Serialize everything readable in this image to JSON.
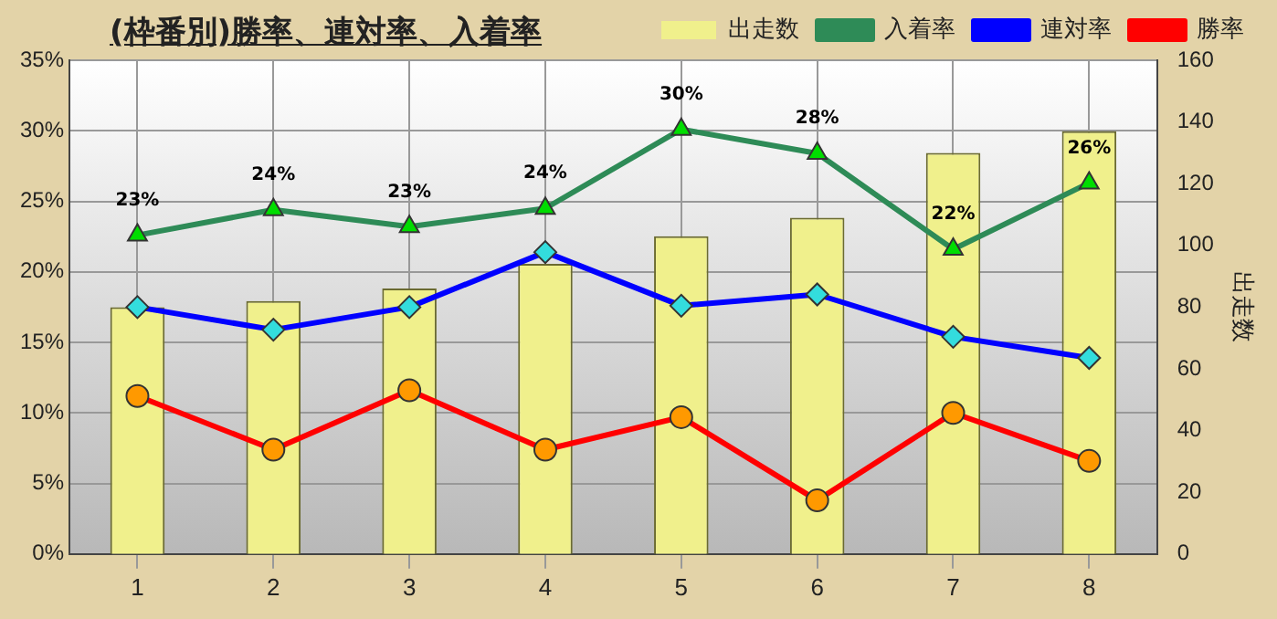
{
  "chart_data": {
    "type": "bar",
    "title": "(枠番別)勝率、連対率、入着率",
    "y2label": "出走数",
    "categories": [
      "1",
      "2",
      "3",
      "4",
      "5",
      "6",
      "7",
      "8"
    ],
    "series": [
      {
        "name": "出走数",
        "axis": "y2",
        "color": "#f0f08c",
        "values": [
          80,
          82,
          86,
          94,
          103,
          109,
          130,
          137
        ]
      },
      {
        "name": "入着率",
        "type": "line",
        "color": "#2e8b57",
        "marker": "triangle",
        "values": [
          22.6,
          24.4,
          23.2,
          24.5,
          30.1,
          28.4,
          21.6,
          26.3
        ],
        "value_labels": [
          "23%",
          "24%",
          "23%",
          "24%",
          "30%",
          "28%",
          "22%",
          "26%"
        ]
      },
      {
        "name": "連対率",
        "type": "line",
        "color": "#0000ff",
        "marker": "diamond",
        "values": [
          17.5,
          15.9,
          17.5,
          21.4,
          17.6,
          18.4,
          15.4,
          13.9
        ]
      },
      {
        "name": "勝率",
        "type": "line",
        "color": "#ff0000",
        "marker": "circle",
        "values": [
          11.2,
          7.4,
          11.6,
          7.4,
          9.7,
          3.8,
          10.0,
          6.6
        ]
      }
    ],
    "ylim": [
      0,
      35
    ],
    "yticks": [
      {
        "value": 0,
        "label": "0%"
      },
      {
        "value": 5,
        "label": "5%"
      },
      {
        "value": 10,
        "label": "10%"
      },
      {
        "value": 15,
        "label": "15%"
      },
      {
        "value": 20,
        "label": "20%"
      },
      {
        "value": 25,
        "label": "25%"
      },
      {
        "value": 30,
        "label": "30%"
      },
      {
        "value": 35,
        "label": "35%"
      }
    ],
    "y2lim": [
      0,
      160
    ],
    "y2ticks": [
      0,
      20,
      40,
      60,
      80,
      100,
      120,
      140,
      160
    ],
    "grid": true,
    "legend": "top right"
  }
}
